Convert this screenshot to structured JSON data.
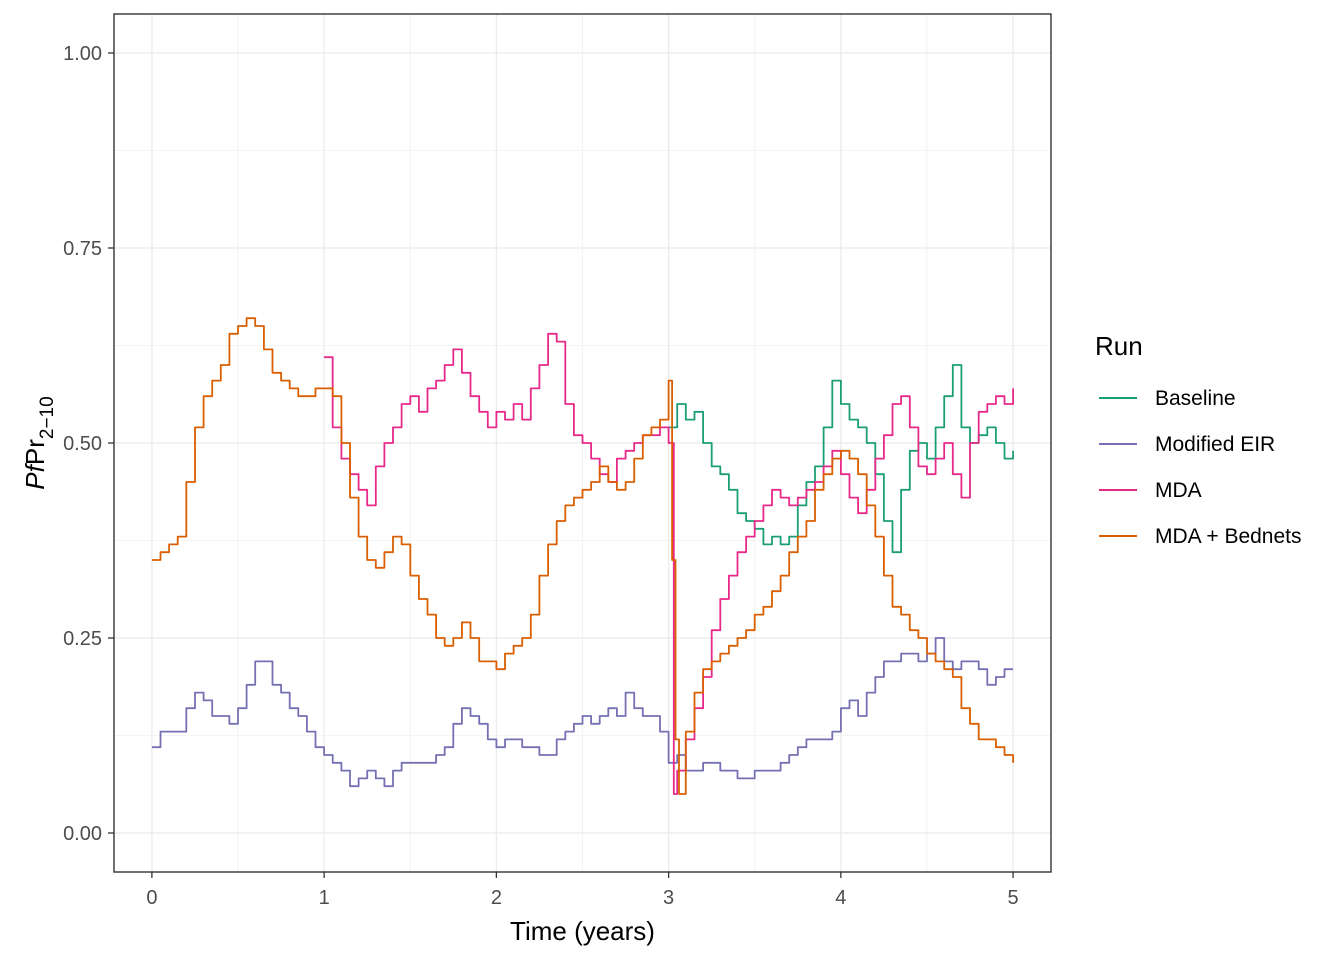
{
  "chart_data": {
    "type": "line",
    "title": "",
    "xlabel": "Time (years)",
    "ylabel": {
      "italic": "Pf",
      "main": "Pr",
      "subscript": "2−10"
    },
    "xlim": [
      -0.22,
      5.22
    ],
    "ylim": [
      -0.05,
      1.05
    ],
    "x_ticks": [
      "0",
      "1",
      "2",
      "3",
      "4",
      "5"
    ],
    "y_ticks": [
      "0.00",
      "0.25",
      "0.50",
      "0.75",
      "1.00"
    ],
    "grid": true,
    "legend": {
      "title": "Run",
      "position": "right",
      "entries": [
        "Baseline",
        "Modified EIR",
        "MDA",
        "MDA + Bednets"
      ]
    },
    "series": [
      {
        "name": "Baseline",
        "color": "#1b9e77",
        "x": [
          3.0,
          3.05,
          3.1,
          3.15,
          3.2,
          3.25,
          3.3,
          3.35,
          3.4,
          3.45,
          3.5,
          3.55,
          3.6,
          3.65,
          3.7,
          3.75,
          3.8,
          3.85,
          3.9,
          3.95,
          4.0,
          4.05,
          4.1,
          4.15,
          4.2,
          4.25,
          4.3,
          4.35,
          4.4,
          4.45,
          4.5,
          4.55,
          4.6,
          4.65,
          4.7,
          4.75,
          4.8,
          4.85,
          4.9,
          4.95,
          5.0
        ],
        "y": [
          0.52,
          0.55,
          0.53,
          0.54,
          0.5,
          0.47,
          0.46,
          0.44,
          0.41,
          0.4,
          0.39,
          0.37,
          0.38,
          0.37,
          0.38,
          0.42,
          0.45,
          0.47,
          0.52,
          0.58,
          0.55,
          0.53,
          0.52,
          0.5,
          0.46,
          0.4,
          0.36,
          0.44,
          0.49,
          0.5,
          0.48,
          0.52,
          0.56,
          0.6,
          0.52,
          0.5,
          0.51,
          0.52,
          0.5,
          0.48,
          0.49
        ]
      },
      {
        "name": "Modified EIR",
        "color": "#7570b3",
        "x": [
          0.0,
          0.05,
          0.1,
          0.15,
          0.2,
          0.25,
          0.3,
          0.35,
          0.4,
          0.45,
          0.5,
          0.55,
          0.6,
          0.65,
          0.7,
          0.75,
          0.8,
          0.85,
          0.9,
          0.95,
          1.0,
          1.05,
          1.1,
          1.15,
          1.2,
          1.25,
          1.3,
          1.35,
          1.4,
          1.45,
          1.5,
          1.55,
          1.6,
          1.65,
          1.7,
          1.75,
          1.8,
          1.85,
          1.9,
          1.95,
          2.0,
          2.05,
          2.1,
          2.15,
          2.2,
          2.25,
          2.3,
          2.35,
          2.4,
          2.45,
          2.5,
          2.55,
          2.6,
          2.65,
          2.7,
          2.75,
          2.8,
          2.85,
          2.9,
          2.95,
          3.0,
          3.05,
          3.1,
          3.15,
          3.2,
          3.25,
          3.3,
          3.35,
          3.4,
          3.45,
          3.5,
          3.55,
          3.6,
          3.65,
          3.7,
          3.75,
          3.8,
          3.85,
          3.9,
          3.95,
          4.0,
          4.05,
          4.1,
          4.15,
          4.2,
          4.25,
          4.3,
          4.35,
          4.4,
          4.45,
          4.5,
          4.55,
          4.6,
          4.65,
          4.7,
          4.75,
          4.8,
          4.85,
          4.9,
          4.95,
          5.0
        ],
        "y": [
          0.11,
          0.13,
          0.13,
          0.13,
          0.16,
          0.18,
          0.17,
          0.15,
          0.15,
          0.14,
          0.16,
          0.19,
          0.22,
          0.22,
          0.19,
          0.18,
          0.16,
          0.15,
          0.13,
          0.11,
          0.1,
          0.09,
          0.08,
          0.06,
          0.07,
          0.08,
          0.07,
          0.06,
          0.08,
          0.09,
          0.09,
          0.09,
          0.09,
          0.1,
          0.11,
          0.14,
          0.16,
          0.15,
          0.14,
          0.12,
          0.11,
          0.12,
          0.12,
          0.11,
          0.11,
          0.1,
          0.1,
          0.12,
          0.13,
          0.14,
          0.15,
          0.14,
          0.15,
          0.16,
          0.15,
          0.18,
          0.16,
          0.15,
          0.15,
          0.13,
          0.09,
          0.1,
          0.08,
          0.08,
          0.09,
          0.09,
          0.08,
          0.08,
          0.07,
          0.07,
          0.08,
          0.08,
          0.08,
          0.09,
          0.1,
          0.11,
          0.12,
          0.12,
          0.12,
          0.13,
          0.16,
          0.17,
          0.15,
          0.18,
          0.2,
          0.22,
          0.22,
          0.23,
          0.23,
          0.22,
          0.23,
          0.25,
          0.22,
          0.21,
          0.22,
          0.22,
          0.21,
          0.19,
          0.2,
          0.21,
          0.21
        ]
      },
      {
        "name": "MDA",
        "color": "#e7298a",
        "x": [
          1.0,
          1.05,
          1.1,
          1.15,
          1.2,
          1.25,
          1.3,
          1.35,
          1.4,
          1.45,
          1.5,
          1.55,
          1.6,
          1.65,
          1.7,
          1.75,
          1.8,
          1.85,
          1.9,
          1.95,
          2.0,
          2.05,
          2.1,
          2.15,
          2.2,
          2.25,
          2.3,
          2.35,
          2.4,
          2.45,
          2.5,
          2.55,
          2.6,
          2.65,
          2.7,
          2.75,
          2.8,
          2.85,
          2.9,
          2.95,
          3.0,
          3.03,
          3.05,
          3.1,
          3.15,
          3.2,
          3.25,
          3.3,
          3.35,
          3.4,
          3.45,
          3.5,
          3.55,
          3.6,
          3.65,
          3.7,
          3.75,
          3.8,
          3.85,
          3.9,
          3.95,
          4.0,
          4.05,
          4.1,
          4.15,
          4.2,
          4.25,
          4.3,
          4.35,
          4.4,
          4.45,
          4.5,
          4.55,
          4.6,
          4.65,
          4.7,
          4.75,
          4.8,
          4.85,
          4.9,
          4.95,
          5.0
        ],
        "y": [
          0.61,
          0.52,
          0.48,
          0.46,
          0.44,
          0.42,
          0.47,
          0.5,
          0.52,
          0.55,
          0.56,
          0.54,
          0.57,
          0.58,
          0.6,
          0.62,
          0.59,
          0.56,
          0.54,
          0.52,
          0.54,
          0.53,
          0.55,
          0.53,
          0.57,
          0.6,
          0.64,
          0.63,
          0.55,
          0.51,
          0.5,
          0.48,
          0.46,
          0.45,
          0.48,
          0.49,
          0.5,
          0.51,
          0.51,
          0.52,
          0.5,
          0.05,
          0.08,
          0.12,
          0.16,
          0.2,
          0.26,
          0.3,
          0.33,
          0.36,
          0.38,
          0.4,
          0.42,
          0.44,
          0.43,
          0.42,
          0.43,
          0.44,
          0.45,
          0.47,
          0.49,
          0.46,
          0.43,
          0.41,
          0.44,
          0.48,
          0.51,
          0.55,
          0.56,
          0.52,
          0.47,
          0.46,
          0.48,
          0.5,
          0.46,
          0.43,
          0.5,
          0.54,
          0.55,
          0.56,
          0.55,
          0.57
        ]
      },
      {
        "name": "MDA + Bednets",
        "color": "#d95f02",
        "x": [
          0.0,
          0.05,
          0.1,
          0.15,
          0.2,
          0.25,
          0.3,
          0.35,
          0.4,
          0.45,
          0.5,
          0.55,
          0.6,
          0.65,
          0.7,
          0.75,
          0.8,
          0.85,
          0.9,
          0.95,
          1.0,
          1.05,
          1.1,
          1.15,
          1.2,
          1.25,
          1.3,
          1.35,
          1.4,
          1.45,
          1.5,
          1.55,
          1.6,
          1.65,
          1.7,
          1.75,
          1.8,
          1.85,
          1.9,
          1.95,
          2.0,
          2.05,
          2.1,
          2.15,
          2.2,
          2.25,
          2.3,
          2.35,
          2.4,
          2.45,
          2.5,
          2.55,
          2.6,
          2.65,
          2.7,
          2.75,
          2.8,
          2.85,
          2.9,
          2.95,
          3.0,
          3.02,
          3.04,
          3.06,
          3.1,
          3.15,
          3.2,
          3.25,
          3.3,
          3.35,
          3.4,
          3.45,
          3.5,
          3.55,
          3.6,
          3.65,
          3.7,
          3.75,
          3.8,
          3.85,
          3.9,
          3.95,
          4.0,
          4.05,
          4.1,
          4.15,
          4.2,
          4.25,
          4.3,
          4.35,
          4.4,
          4.45,
          4.5,
          4.55,
          4.6,
          4.65,
          4.7,
          4.75,
          4.8,
          4.85,
          4.9,
          4.95,
          5.0
        ],
        "y": [
          0.35,
          0.36,
          0.37,
          0.38,
          0.45,
          0.52,
          0.56,
          0.58,
          0.6,
          0.64,
          0.65,
          0.66,
          0.65,
          0.62,
          0.59,
          0.58,
          0.57,
          0.56,
          0.56,
          0.57,
          0.57,
          0.56,
          0.5,
          0.43,
          0.38,
          0.35,
          0.34,
          0.36,
          0.38,
          0.37,
          0.33,
          0.3,
          0.28,
          0.25,
          0.24,
          0.25,
          0.27,
          0.25,
          0.22,
          0.22,
          0.21,
          0.23,
          0.24,
          0.25,
          0.28,
          0.33,
          0.37,
          0.4,
          0.42,
          0.43,
          0.44,
          0.45,
          0.47,
          0.45,
          0.44,
          0.45,
          0.48,
          0.51,
          0.52,
          0.53,
          0.58,
          0.35,
          0.12,
          0.05,
          0.13,
          0.18,
          0.21,
          0.22,
          0.23,
          0.24,
          0.25,
          0.26,
          0.28,
          0.29,
          0.31,
          0.33,
          0.36,
          0.38,
          0.4,
          0.44,
          0.46,
          0.48,
          0.49,
          0.48,
          0.46,
          0.42,
          0.38,
          0.33,
          0.29,
          0.28,
          0.26,
          0.25,
          0.23,
          0.22,
          0.21,
          0.2,
          0.16,
          0.14,
          0.12,
          0.12,
          0.11,
          0.1,
          0.09
        ]
      }
    ]
  }
}
